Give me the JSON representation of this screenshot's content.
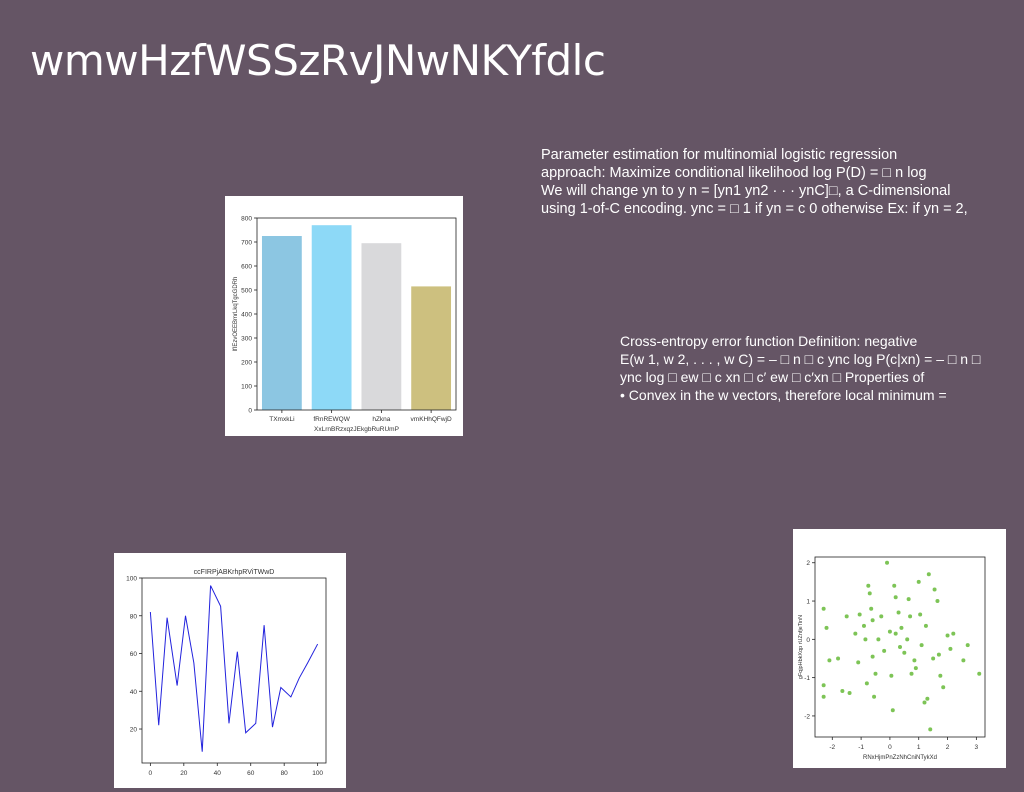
{
  "slide": {
    "title": "wmwHzfWSSzRvJNwNKYfdlc",
    "text_blocks": [
      "Parameter estimation for multinomial logistic regression\napproach: Maximize conditional likelihood log P(D) = □ n log\nWe will change yn to y n = [yn1 yn2 · · · ynC]□, a C-dimensional\nusing 1-of-C encoding. ync = □ 1 if yn = c 0 otherwise Ex: if yn = 2,",
      "Cross-entropy error function Definition: negative\nE(w 1, w 2, . . . , w C) = – □ n □ c ync log P(c|xn) = – □ n □\nync log □ ew □ c xn □ c′ ew □ c′xn □ Properties of\n• Convex in the w vectors, therefore local minimum ="
    ]
  },
  "chart_data": [
    {
      "type": "bar",
      "title": "",
      "categories": [
        "TXmxkLi",
        "fRnREWQW",
        "hZkna",
        "vmKHhQFwjD"
      ],
      "values": [
        725,
        770,
        695,
        515
      ],
      "colors": [
        "#8cc6e2",
        "#8dd9f7",
        "#d9d9db",
        "#cdc07f"
      ],
      "xlabel": "XxLrnBRzxqzJEkgbRuRUmP",
      "ylabel": "lfIEzvOEEBmrLkqTgcGDRh",
      "ylim": [
        0,
        800
      ],
      "yticks": [
        0,
        100,
        200,
        300,
        400,
        500,
        600,
        700,
        800
      ],
      "grid": false
    },
    {
      "type": "line",
      "title": "ccFIRPjABKrhpRViTWwD",
      "x": [
        0,
        5,
        10,
        16,
        21,
        26,
        31,
        36,
        42,
        47,
        52,
        57,
        63,
        68,
        73,
        78,
        84,
        89,
        94,
        100
      ],
      "series": [
        {
          "values": [
            82,
            22,
            79,
            43,
            80,
            55,
            8,
            96,
            85,
            23,
            61,
            18,
            23,
            75,
            21,
            42,
            37,
            47,
            55,
            65
          ],
          "color": "#2222dd"
        }
      ],
      "xlabel": "",
      "ylabel": "",
      "xlim": [
        -5,
        105
      ],
      "ylim": [
        2,
        100
      ],
      "xticks": [
        0,
        20,
        40,
        60,
        80,
        100
      ],
      "yticks": [
        20,
        40,
        60,
        80,
        100
      ],
      "grid": false
    },
    {
      "type": "scatter",
      "title": "",
      "color": "#7dc456",
      "points": [
        [
          -2.3,
          0.8
        ],
        [
          -2.2,
          0.3
        ],
        [
          -2.1,
          -0.55
        ],
        [
          -2.3,
          -1.2
        ],
        [
          -2.3,
          -1.5
        ],
        [
          -1.8,
          -0.5
        ],
        [
          -1.65,
          -1.35
        ],
        [
          -1.5,
          0.6
        ],
        [
          -1.4,
          -1.4
        ],
        [
          -1.2,
          0.15
        ],
        [
          -1.1,
          -0.6
        ],
        [
          -1.05,
          0.65
        ],
        [
          -0.9,
          0.35
        ],
        [
          -0.85,
          0.0
        ],
        [
          -0.8,
          -1.15
        ],
        [
          -0.75,
          1.4
        ],
        [
          -0.7,
          1.2
        ],
        [
          -0.65,
          0.8
        ],
        [
          -0.6,
          0.5
        ],
        [
          -0.6,
          -0.45
        ],
        [
          -0.55,
          -1.5
        ],
        [
          -0.5,
          -0.9
        ],
        [
          -0.4,
          0.0
        ],
        [
          -0.3,
          0.6
        ],
        [
          -0.2,
          -0.3
        ],
        [
          -0.1,
          2.0
        ],
        [
          0.0,
          0.2
        ],
        [
          0.05,
          -0.95
        ],
        [
          0.1,
          -1.85
        ],
        [
          0.15,
          1.4
        ],
        [
          0.2,
          1.1
        ],
        [
          0.2,
          0.15
        ],
        [
          0.3,
          0.7
        ],
        [
          0.35,
          -0.2
        ],
        [
          0.4,
          0.3
        ],
        [
          0.5,
          -0.35
        ],
        [
          0.6,
          0.0
        ],
        [
          0.65,
          1.05
        ],
        [
          0.7,
          0.6
        ],
        [
          0.75,
          -0.9
        ],
        [
          0.85,
          -0.55
        ],
        [
          0.9,
          -0.75
        ],
        [
          1.0,
          1.5
        ],
        [
          1.05,
          0.65
        ],
        [
          1.1,
          -0.15
        ],
        [
          1.2,
          -1.65
        ],
        [
          1.25,
          0.35
        ],
        [
          1.3,
          -1.55
        ],
        [
          1.35,
          1.7
        ],
        [
          1.4,
          -2.35
        ],
        [
          1.5,
          -0.5
        ],
        [
          1.55,
          1.3
        ],
        [
          1.65,
          1.0
        ],
        [
          1.7,
          -0.4
        ],
        [
          1.75,
          -0.95
        ],
        [
          1.85,
          -1.25
        ],
        [
          2.0,
          0.1
        ],
        [
          2.1,
          -0.25
        ],
        [
          2.2,
          0.15
        ],
        [
          2.55,
          -0.55
        ],
        [
          2.7,
          -0.15
        ],
        [
          3.1,
          -0.9
        ]
      ],
      "xlabel": "RNxHjmPnZzNhCniNTykXd",
      "ylabel": "gFqjpHbkXqp rUZnfjeTinN",
      "xlim": [
        -2.6,
        3.3
      ],
      "ylim": [
        -2.55,
        2.15
      ],
      "xticks": [
        -2,
        -1,
        0,
        1,
        2,
        3
      ],
      "yticks": [
        -2,
        -1,
        0,
        1,
        2
      ],
      "grid": false
    }
  ]
}
